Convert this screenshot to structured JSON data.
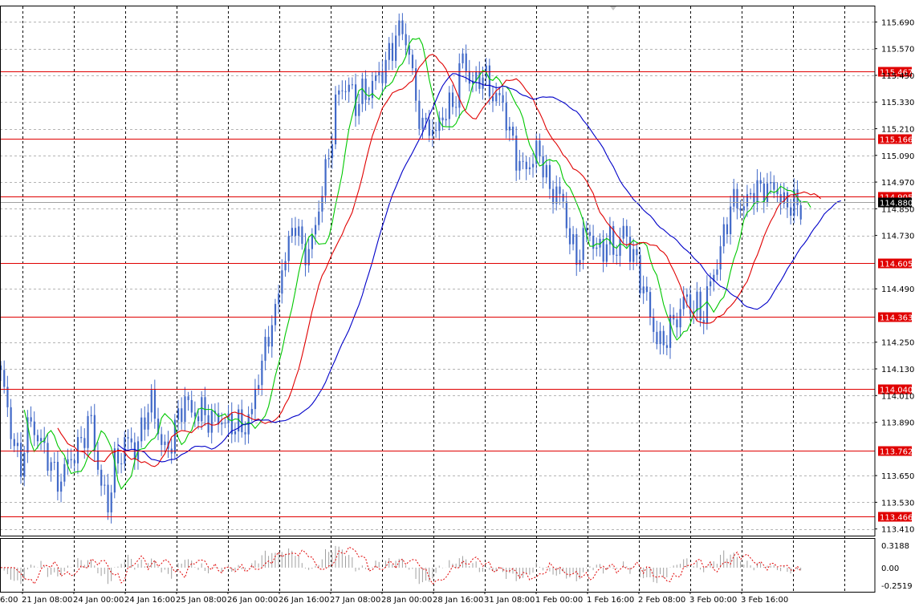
{
  "chart_data": {
    "type": "candlestick",
    "price_axis": {
      "ticks": [
        "115.690",
        "115.570",
        "115.450",
        "115.330",
        "115.210",
        "115.090",
        "114.970",
        "114.850",
        "114.730",
        "114.490",
        "114.250",
        "114.130",
        "114.010",
        "113.890",
        "113.650",
        "113.530",
        "113.410"
      ],
      "range": [
        113.38,
        115.76
      ]
    },
    "time_axis": {
      "labels": [
        "21 Jan 08:00",
        "24 Jan 00:00",
        "24 Jan 16:00",
        "25 Jan 08:00",
        "26 Jan 00:00",
        "26 Jan 16:00",
        "27 Jan 08:00",
        "28 Jan 00:00",
        "28 Jan 16:00",
        "31 Jan 08:00",
        "1 Feb 00:00",
        "1 Feb 16:00",
        "2 Feb 08:00",
        "3 Feb 00:00",
        "3 Feb 16:00"
      ],
      "first_label_partial": "6:00",
      "bars": 240
    },
    "levels": [
      {
        "value": 115.467,
        "label": "115.467"
      },
      {
        "value": 115.166,
        "label": "115.166"
      },
      {
        "value": 114.905,
        "label": "114.905"
      },
      {
        "value": 114.605,
        "label": "114.605"
      },
      {
        "value": 114.363,
        "label": "114.363"
      },
      {
        "value": 114.04,
        "label": "114.040"
      },
      {
        "value": 113.762,
        "label": "113.762"
      },
      {
        "value": 113.466,
        "label": "113.466"
      }
    ],
    "current_price": {
      "value": 114.88,
      "label": "114.880"
    },
    "anchors": [
      [
        0,
        114.1
      ],
      [
        3,
        113.85
      ],
      [
        6,
        113.7
      ],
      [
        9,
        113.9
      ],
      [
        12,
        113.8
      ],
      [
        15,
        113.68
      ],
      [
        18,
        113.64
      ],
      [
        21,
        113.72
      ],
      [
        24,
        113.82
      ],
      [
        27,
        113.88
      ],
      [
        30,
        113.62
      ],
      [
        32,
        113.5
      ],
      [
        34,
        113.7
      ],
      [
        37,
        113.8
      ],
      [
        40,
        113.76
      ],
      [
        43,
        113.92
      ],
      [
        45,
        113.96
      ],
      [
        48,
        113.82
      ],
      [
        50,
        113.74
      ],
      [
        52,
        113.86
      ],
      [
        55,
        114.02
      ],
      [
        57,
        113.9
      ],
      [
        60,
        113.96
      ],
      [
        63,
        113.88
      ],
      [
        66,
        113.92
      ],
      [
        69,
        113.86
      ],
      [
        72,
        113.88
      ],
      [
        75,
        113.92
      ],
      [
        77,
        114.1
      ],
      [
        80,
        114.3
      ],
      [
        82,
        114.35
      ],
      [
        84,
        114.6
      ],
      [
        86,
        114.7
      ],
      [
        88,
        114.78
      ],
      [
        90,
        114.66
      ],
      [
        92,
        114.68
      ],
      [
        94,
        114.74
      ],
      [
        96,
        114.95
      ],
      [
        98,
        115.1
      ],
      [
        100,
        115.3
      ],
      [
        102,
        115.4
      ],
      [
        104,
        115.42
      ],
      [
        106,
        115.3
      ],
      [
        108,
        115.36
      ],
      [
        110,
        115.4
      ],
      [
        112,
        115.42
      ],
      [
        114,
        115.46
      ],
      [
        116,
        115.56
      ],
      [
        118,
        115.62
      ],
      [
        120,
        115.64
      ],
      [
        122,
        115.58
      ],
      [
        124,
        115.32
      ],
      [
        126,
        115.2
      ],
      [
        128,
        115.25
      ],
      [
        130,
        115.18
      ],
      [
        132,
        115.26
      ],
      [
        134,
        115.32
      ],
      [
        136,
        115.36
      ],
      [
        138,
        115.52
      ],
      [
        140,
        115.45
      ],
      [
        142,
        115.42
      ],
      [
        144,
        115.44
      ],
      [
        146,
        115.4
      ],
      [
        148,
        115.36
      ],
      [
        150,
        115.3
      ],
      [
        152,
        115.2
      ],
      [
        154,
        115.1
      ],
      [
        156,
        115.0
      ],
      [
        158,
        115.06
      ],
      [
        160,
        115.12
      ],
      [
        162,
        115.04
      ],
      [
        164,
        114.92
      ],
      [
        166,
        114.96
      ],
      [
        168,
        114.84
      ],
      [
        170,
        114.72
      ],
      [
        172,
        114.64
      ],
      [
        174,
        114.7
      ],
      [
        176,
        114.74
      ],
      [
        178,
        114.68
      ],
      [
        180,
        114.66
      ],
      [
        182,
        114.7
      ],
      [
        184,
        114.68
      ],
      [
        186,
        114.74
      ],
      [
        188,
        114.66
      ],
      [
        190,
        114.62
      ],
      [
        192,
        114.48
      ],
      [
        194,
        114.36
      ],
      [
        196,
        114.28
      ],
      [
        198,
        114.24
      ],
      [
        200,
        114.3
      ],
      [
        202,
        114.38
      ],
      [
        204,
        114.44
      ],
      [
        206,
        114.4
      ],
      [
        208,
        114.42
      ],
      [
        210,
        114.38
      ],
      [
        212,
        114.5
      ],
      [
        214,
        114.62
      ],
      [
        216,
        114.74
      ],
      [
        218,
        114.84
      ],
      [
        220,
        114.9
      ],
      [
        222,
        114.86
      ],
      [
        224,
        114.9
      ],
      [
        226,
        114.94
      ],
      [
        228,
        114.96
      ],
      [
        230,
        114.92
      ],
      [
        232,
        114.94
      ],
      [
        234,
        114.88
      ],
      [
        236,
        114.86
      ],
      [
        239,
        114.86
      ]
    ],
    "moving_averages": [
      {
        "period": 5,
        "color": "#00c800"
      },
      {
        "period": 12,
        "color": "#e00000"
      },
      {
        "period": 24,
        "color": "#0000c8"
      }
    ],
    "oscillator": {
      "ticks": [
        "0.3188",
        "0.00",
        "-0.2519"
      ],
      "range": [
        -0.2519,
        0.3188
      ]
    }
  },
  "colors": {
    "candle": "#4169c8",
    "level": "#e00000",
    "level_label_bg": "#e00000",
    "current_label_bg": "#000000",
    "grid": "#b4b4b4",
    "vgrid": "#000000",
    "osc_bar": "#a0a0a0",
    "osc_signal": "#e00000"
  }
}
